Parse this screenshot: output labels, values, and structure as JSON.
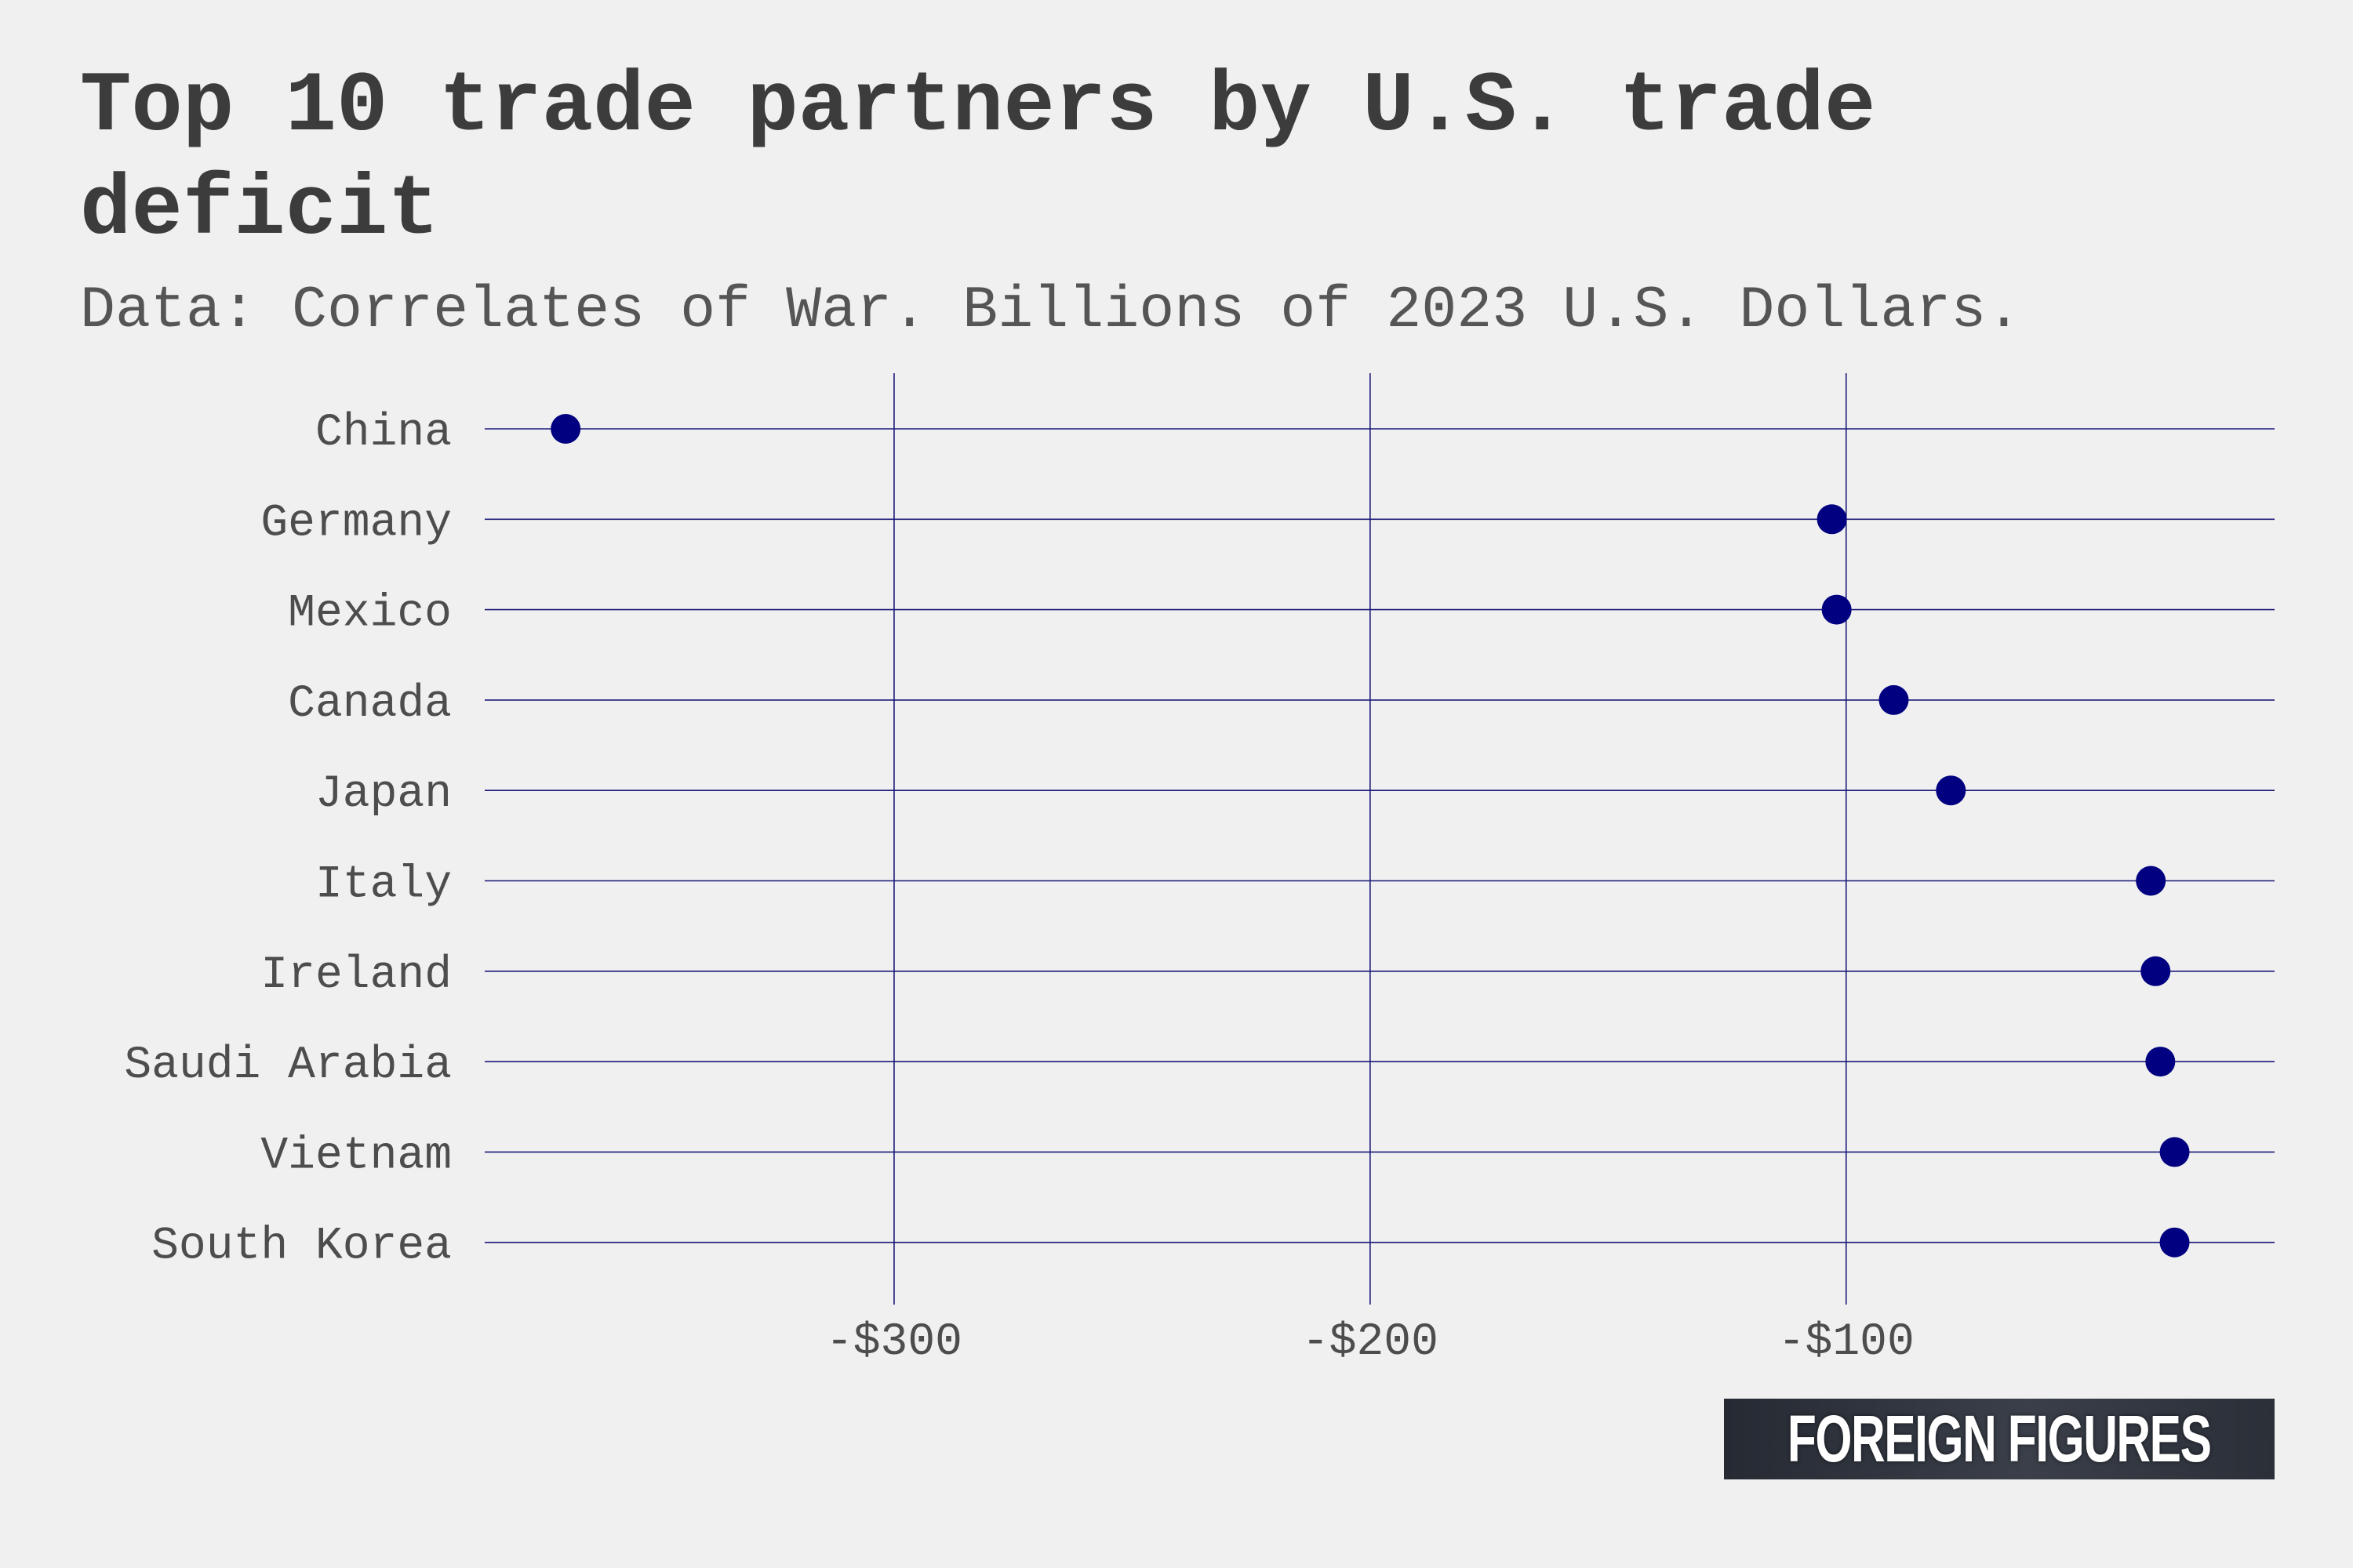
{
  "chart_data": {
    "type": "scatter",
    "title": "Top 10 trade partners by U.S. trade deficit",
    "subtitle": "Data: Correlates of War. Billions of 2023 U.S. Dollars.",
    "categories": [
      "China",
      "Germany",
      "Mexico",
      "Canada",
      "Japan",
      "Italy",
      "Ireland",
      "Saudi Arabia",
      "Vietnam",
      "South Korea"
    ],
    "values": [
      -369,
      -103,
      -102,
      -90,
      -78,
      -36,
      -35,
      -34,
      -31,
      -31
    ],
    "x_ticks": [
      -300,
      -200,
      -100
    ],
    "x_tick_labels": [
      "-$300",
      "-$200",
      "-$100"
    ],
    "xlim": [
      -386,
      -10
    ],
    "xlabel": "",
    "ylabel": "",
    "grid": true,
    "legend": "none",
    "colors": {
      "point": "#000080",
      "grid": "#1a1a7a",
      "background": "#f0f0f0",
      "title": "#3c3c3c"
    }
  },
  "logo": {
    "text": "FOREIGN FIGURES"
  }
}
